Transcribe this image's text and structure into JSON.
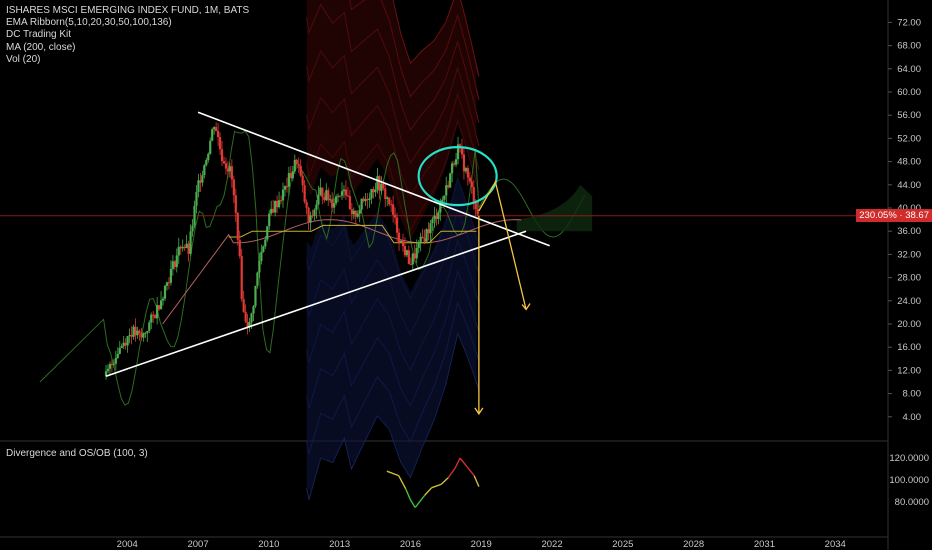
{
  "legend": {
    "title": "ISHARES MSCI EMERGING INDEX FUND, 1M, BATS",
    "rows": [
      "EMA Ribborn(5,10,20,30,50,100,136)",
      "DC Trading Kit",
      "MA (200, close)",
      "Vol (20)"
    ]
  },
  "price_badge": "230.05% · 38.67",
  "colors": {
    "background": "#000000",
    "up": "#4caf50",
    "down": "#e53935",
    "trend": "#ffffff",
    "circle": "#26e0c8",
    "arrow": "#f5c542",
    "ema_upper": "#8b1a1a",
    "ema_lower": "#1a2a6b"
  },
  "chart_data": [
    {
      "type": "candlestick",
      "title": "ISHARES MSCI EMERGING INDEX FUND, 1M, BATS",
      "y_axis": {
        "min": 0,
        "max": 74,
        "ticks": [
          "72.00",
          "68.00",
          "64.00",
          "60.00",
          "56.00",
          "52.00",
          "48.00",
          "44.00",
          "40.00",
          "36.00",
          "32.00",
          "28.00",
          "24.00",
          "20.00",
          "16.00",
          "12.00",
          "8.00",
          "4.00"
        ]
      },
      "x_axis": {
        "ticks": [
          "2004",
          "2007",
          "2010",
          "2013",
          "2016",
          "2019",
          "2022",
          "2025",
          "2028",
          "2031",
          "2034"
        ]
      },
      "price_path": [
        {
          "x": 2003.1,
          "y": 11.0
        },
        {
          "x": 2003.6,
          "y": 15.5
        },
        {
          "x": 2004.2,
          "y": 18.8
        },
        {
          "x": 2004.6,
          "y": 17.5
        },
        {
          "x": 2005.2,
          "y": 22.0
        },
        {
          "x": 2005.8,
          "y": 28.5
        },
        {
          "x": 2006.3,
          "y": 34.0
        },
        {
          "x": 2006.6,
          "y": 32.5
        },
        {
          "x": 2007.0,
          "y": 44.0
        },
        {
          "x": 2007.4,
          "y": 49.5
        },
        {
          "x": 2007.7,
          "y": 55.0
        },
        {
          "x": 2008.0,
          "y": 49.0
        },
        {
          "x": 2008.4,
          "y": 46.0
        },
        {
          "x": 2008.7,
          "y": 35.0
        },
        {
          "x": 2008.9,
          "y": 22.0
        },
        {
          "x": 2009.2,
          "y": 19.5
        },
        {
          "x": 2009.6,
          "y": 31.0
        },
        {
          "x": 2010.1,
          "y": 39.5
        },
        {
          "x": 2010.6,
          "y": 42.5
        },
        {
          "x": 2011.2,
          "y": 48.5
        },
        {
          "x": 2011.7,
          "y": 37.0
        },
        {
          "x": 2012.2,
          "y": 43.0
        },
        {
          "x": 2012.7,
          "y": 41.0
        },
        {
          "x": 2013.2,
          "y": 44.0
        },
        {
          "x": 2013.5,
          "y": 38.0
        },
        {
          "x": 2014.0,
          "y": 41.0
        },
        {
          "x": 2014.6,
          "y": 44.5
        },
        {
          "x": 2015.1,
          "y": 41.0
        },
        {
          "x": 2015.6,
          "y": 34.0
        },
        {
          "x": 2016.0,
          "y": 30.5
        },
        {
          "x": 2016.5,
          "y": 34.5
        },
        {
          "x": 2017.0,
          "y": 38.0
        },
        {
          "x": 2017.5,
          "y": 43.0
        },
        {
          "x": 2018.0,
          "y": 50.5
        },
        {
          "x": 2018.3,
          "y": 47.0
        },
        {
          "x": 2018.6,
          "y": 43.0
        },
        {
          "x": 2018.9,
          "y": 38.67
        }
      ],
      "volume_profile": [
        {
          "x": 2003.1,
          "v": 0.2
        },
        {
          "x": 2005.0,
          "v": 0.4
        },
        {
          "x": 2006.3,
          "v": 1.2
        },
        {
          "x": 2007.5,
          "v": 3.0
        },
        {
          "x": 2008.7,
          "v": 5.5
        },
        {
          "x": 2009.5,
          "v": 4.0
        },
        {
          "x": 2011.0,
          "v": 3.3
        },
        {
          "x": 2013.0,
          "v": 3.0
        },
        {
          "x": 2015.5,
          "v": 3.6
        },
        {
          "x": 2017.0,
          "v": 3.2
        },
        {
          "x": 2018.9,
          "v": 4.0
        }
      ],
      "last_price": 38.67,
      "projection_end": {
        "x": 2020.9,
        "y": 22.5
      }
    },
    {
      "type": "line",
      "title": "Divergence and OS/OB (100, 3)",
      "y_axis": {
        "ticks": [
          "120.0000",
          "100.0000",
          "80.0000"
        ]
      },
      "series": [
        {
          "points": [
            {
              "x": 2015.0,
              "y": 108
            },
            {
              "x": 2015.5,
              "y": 104
            },
            {
              "x": 2015.8,
              "y": 92
            },
            {
              "x": 2016.0,
              "y": 82
            },
            {
              "x": 2016.2,
              "y": 75
            },
            {
              "x": 2016.6,
              "y": 86
            },
            {
              "x": 2016.9,
              "y": 93
            },
            {
              "x": 2017.3,
              "y": 96
            },
            {
              "x": 2017.6,
              "y": 102
            },
            {
              "x": 2017.9,
              "y": 111
            },
            {
              "x": 2018.1,
              "y": 120
            },
            {
              "x": 2018.4,
              "y": 112
            },
            {
              "x": 2018.7,
              "y": 104
            },
            {
              "x": 2018.9,
              "y": 94
            }
          ]
        }
      ]
    }
  ]
}
